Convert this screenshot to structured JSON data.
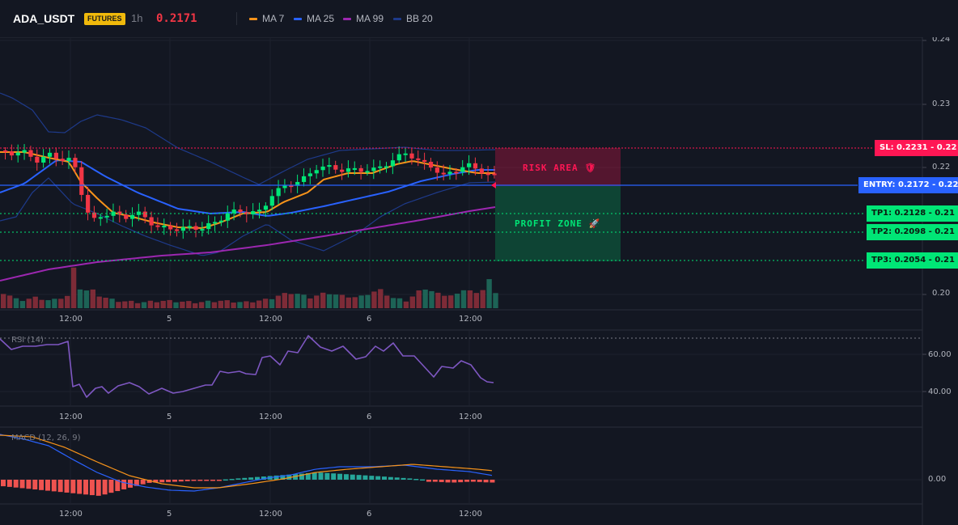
{
  "header": {
    "symbol": "ADA_USDT",
    "badge": "FUTURES",
    "timeframe": "1h",
    "last_price": "0.2171",
    "indicators": [
      {
        "label": "MA 7",
        "color": "#f7931a"
      },
      {
        "label": "MA 25",
        "color": "#2962ff"
      },
      {
        "label": "MA 99",
        "color": "#9c27b0"
      },
      {
        "label": "BB 20",
        "color": "#1e3a8a"
      }
    ]
  },
  "price_axis": {
    "ticks": [
      "0.24",
      "0.23",
      "0.22",
      "0.20"
    ]
  },
  "time_axis": {
    "ticks": [
      "12:00",
      "5",
      "12:00",
      "6",
      "12:00"
    ]
  },
  "levels": {
    "sl": {
      "label": "SL: 0.2231 - 0.22",
      "color": "#ff1654"
    },
    "entry": {
      "label": "ENTRY: 0.2172 - 0.22",
      "color": "#2962ff"
    },
    "tp1": {
      "label": "TP1: 0.2128 - 0.21",
      "color": "#00e676"
    },
    "tp2": {
      "label": "TP2: 0.2098 - 0.21",
      "color": "#00e676"
    },
    "tp3": {
      "label": "TP3: 0.2054 - 0.21",
      "color": "#00e676"
    }
  },
  "zones": {
    "risk": "RISK AREA 🛡",
    "profit": "PROFIT ZONE 🚀"
  },
  "rsi": {
    "title": "RSI (14)",
    "ticks": [
      "60.00",
      "40.00"
    ]
  },
  "macd": {
    "title": "MACD (12, 26, 9)",
    "ticks": [
      "0.00"
    ]
  },
  "colors": {
    "up": "#00e676",
    "down": "#f23645",
    "background": "#131722"
  }
}
